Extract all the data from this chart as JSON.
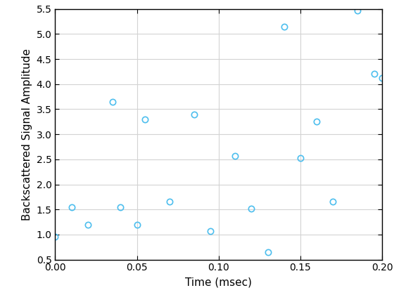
{
  "x": [
    0.0,
    0.01,
    0.02,
    0.035,
    0.04,
    0.05,
    0.055,
    0.07,
    0.085,
    0.095,
    0.11,
    0.12,
    0.13,
    0.14,
    0.15,
    0.16,
    0.17,
    0.185,
    0.195,
    0.2
  ],
  "y": [
    0.95,
    1.55,
    1.2,
    3.65,
    1.55,
    1.2,
    3.3,
    1.65,
    3.4,
    1.07,
    2.57,
    1.52,
    0.65,
    5.15,
    2.52,
    3.25,
    1.65,
    5.47,
    4.2,
    4.12
  ],
  "marker_color": "#4DBEEE",
  "marker_style": "o",
  "marker_size": 6,
  "marker_facecolor": "none",
  "marker_linewidth": 1.2,
  "xlabel": "Time (msec)",
  "ylabel": "Backscattered Signal Amplitude",
  "xlim": [
    0,
    0.2
  ],
  "ylim": [
    0.5,
    5.5
  ],
  "xticks": [
    0,
    0.05,
    0.1,
    0.15,
    0.2
  ],
  "yticks": [
    0.5,
    1.0,
    1.5,
    2.0,
    2.5,
    3.0,
    3.5,
    4.0,
    4.5,
    5.0,
    5.5
  ],
  "grid_color": "#D3D3D3",
  "background_color": "#FFFFFF",
  "figure_facecolor": "#FFFFFF",
  "spine_color": "#000000",
  "xlabel_fontsize": 11,
  "ylabel_fontsize": 11,
  "tick_fontsize": 10,
  "spine_linewidth": 1.0
}
